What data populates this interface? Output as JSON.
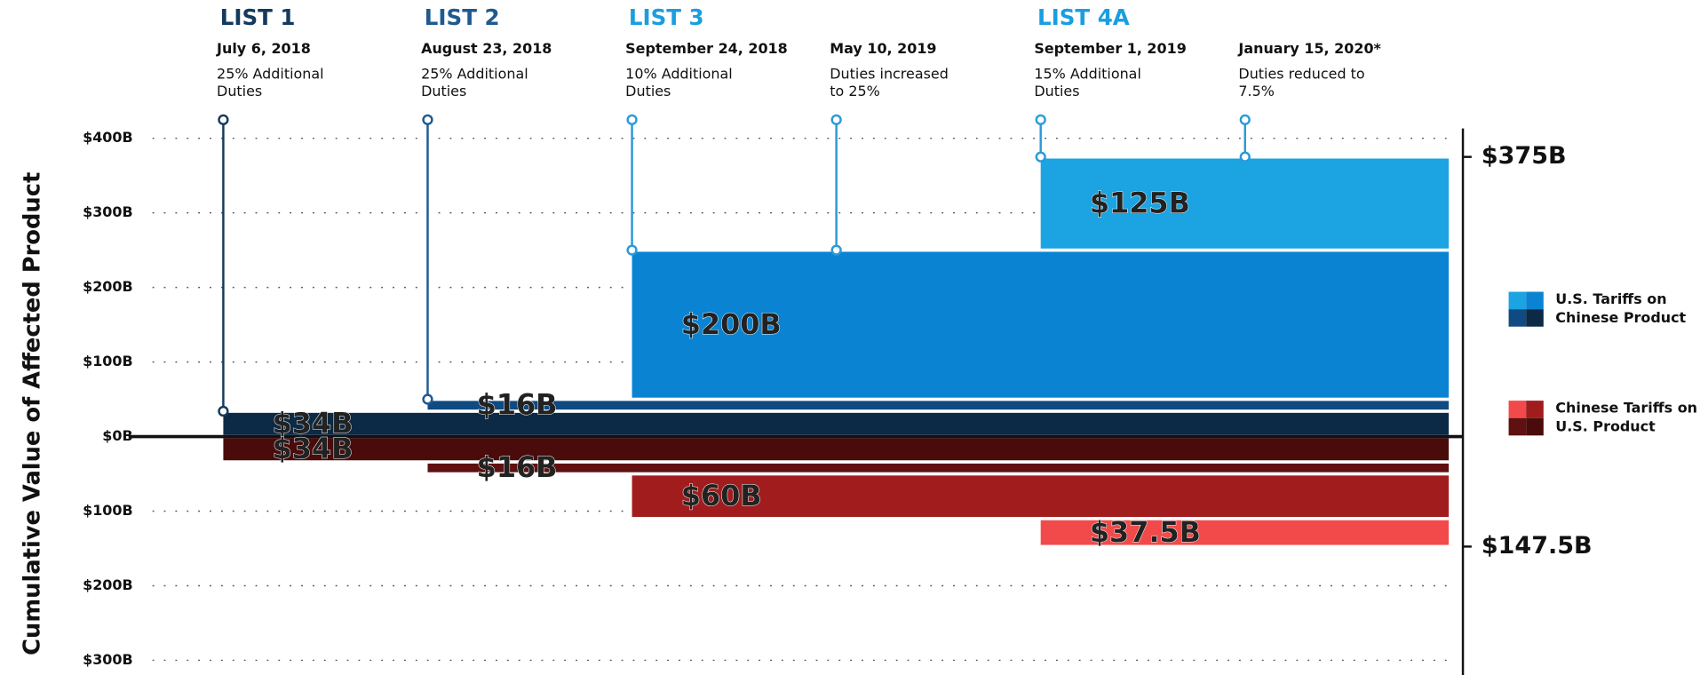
{
  "chart_data": [
    {
      "type": "bar",
      "ylabel": "Cumulative Value of Affected Product",
      "events": [
        {
          "list": "LIST 1",
          "date": "July 6, 2018",
          "note": "25% Additional Duties"
        },
        {
          "list": "LIST 2",
          "date": "August 23, 2018",
          "note": "25% Additional Duties"
        },
        {
          "list": "LIST 3",
          "date": "September 24, 2018",
          "note": "10% Additional Duties"
        },
        {
          "list": null,
          "date": "May 10, 2019",
          "note": "Duties increased to 25%"
        },
        {
          "list": "LIST 4A",
          "date": "September 1, 2019",
          "note": "15% Additional Duties"
        },
        {
          "list": null,
          "date": "January 15, 2020*",
          "note": "Duties reduced to 7.5%"
        }
      ],
      "ylim": [
        0,
        400
      ],
      "yticks": [
        {
          "value": 0,
          "label": "$0B"
        },
        {
          "value": 100,
          "label": "$100B"
        },
        {
          "value": 200,
          "label": "$200B"
        },
        {
          "value": 300,
          "label": "$300B"
        },
        {
          "value": 400,
          "label": "$400B"
        }
      ],
      "series": [
        {
          "name": "U.S. Tariffs on Chinese Product",
          "values": [
            34,
            16,
            200,
            125
          ],
          "value_labels": [
            "$34B",
            "$16B",
            "$200B",
            "$125B"
          ],
          "starts": [
            "July 6, 2018",
            "August 23, 2018",
            "September 24, 2018",
            "September 1, 2019"
          ],
          "colors": [
            "#0c2a45",
            "#0f4a82",
            "#0a84d2",
            "#1ba3e2"
          ]
        }
      ],
      "total": 375,
      "total_label": "$375B"
    },
    {
      "type": "bar",
      "inverted": true,
      "ylim": [
        0,
        300
      ],
      "yticks": [
        {
          "value": 100,
          "label": "$100B"
        },
        {
          "value": 200,
          "label": "$200B"
        },
        {
          "value": 300,
          "label": "$300B"
        }
      ],
      "series": [
        {
          "name": "Chinese Tariffs on U.S. Product",
          "values": [
            34,
            16,
            60,
            37.5
          ],
          "value_labels": [
            "$34B",
            "$16B",
            "$60B",
            "$37.5B"
          ],
          "starts": [
            "July 6, 2018",
            "August 23, 2018",
            "September 24, 2018",
            "September 1, 2019"
          ],
          "colors": [
            "#4a0b0b",
            "#5f1010",
            "#a11d1d",
            "#f24a4a"
          ]
        }
      ],
      "total": 147.5,
      "total_label": "$147.5B"
    }
  ]
}
